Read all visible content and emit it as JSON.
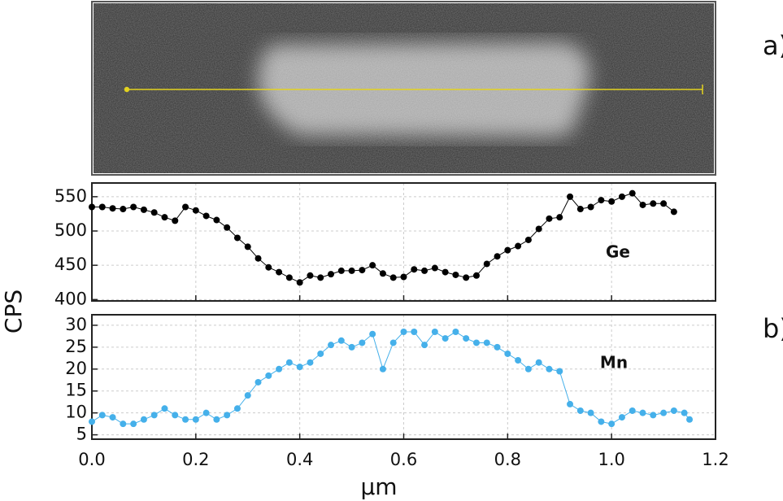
{
  "panels": [
    "a)",
    "b)"
  ],
  "chart_data": [
    {
      "type": "line",
      "ylabel": "CPS",
      "xlim": [
        0,
        1.2
      ],
      "xticks": [
        0,
        0.2,
        0.4,
        0.6,
        0.8,
        1,
        1.2
      ],
      "ylim": [
        398,
        570
      ],
      "yticks": [
        400,
        450,
        500,
        550
      ],
      "grid": true,
      "series": [
        {
          "name": "Ge",
          "color": "#000000",
          "x": [
            0,
            0.02,
            0.04,
            0.06,
            0.08,
            0.1,
            0.12,
            0.14,
            0.16,
            0.18,
            0.2,
            0.22,
            0.24,
            0.26,
            0.28,
            0.3,
            0.32,
            0.34,
            0.36,
            0.38,
            0.4,
            0.42,
            0.44,
            0.46,
            0.48,
            0.5,
            0.52,
            0.54,
            0.56,
            0.58,
            0.6,
            0.62,
            0.64,
            0.66,
            0.68,
            0.7,
            0.72,
            0.74,
            0.76,
            0.78,
            0.8,
            0.82,
            0.84,
            0.86,
            0.88,
            0.9,
            0.92,
            0.94,
            0.96,
            0.98,
            1,
            1.02,
            1.04,
            1.06,
            1.08,
            1.1,
            1.12
          ],
          "values": [
            535,
            535,
            533,
            532,
            535,
            531,
            527,
            520,
            515,
            535,
            530,
            522,
            516,
            505,
            490,
            477,
            460,
            447,
            440,
            432,
            425,
            435,
            432,
            437,
            442,
            442,
            443,
            450,
            438,
            432,
            433,
            444,
            442,
            446,
            440,
            436,
            432,
            435,
            452,
            463,
            472,
            478,
            487,
            503,
            518,
            520,
            550,
            532,
            535,
            545,
            543,
            550,
            555,
            538,
            540,
            540,
            528
          ]
        }
      ]
    },
    {
      "type": "line",
      "xlabel": "µm",
      "xlim": [
        0,
        1.2
      ],
      "xticks": [
        {
          "value": 0,
          "label": "0.0"
        },
        0.2,
        0.4,
        0.6,
        0.8,
        {
          "value": 1,
          "label": "1.0"
        },
        1.2
      ],
      "ylim": [
        4,
        32.4
      ],
      "yticks": [
        5,
        10,
        15,
        20,
        25,
        30
      ],
      "grid": true,
      "series": [
        {
          "name": "Mn",
          "color": "#45b0ea",
          "x": [
            0,
            0.02,
            0.04,
            0.06,
            0.08,
            0.1,
            0.12,
            0.14,
            0.16,
            0.18,
            0.2,
            0.22,
            0.24,
            0.26,
            0.28,
            0.3,
            0.32,
            0.34,
            0.36,
            0.38,
            0.4,
            0.42,
            0.44,
            0.46,
            0.48,
            0.5,
            0.52,
            0.54,
            0.56,
            0.58,
            0.6,
            0.62,
            0.64,
            0.66,
            0.68,
            0.7,
            0.72,
            0.74,
            0.76,
            0.78,
            0.8,
            0.82,
            0.84,
            0.86,
            0.88,
            0.9,
            0.92,
            0.94,
            0.96,
            0.98,
            1,
            1.02,
            1.04,
            1.06,
            1.08,
            1.1,
            1.12,
            1.14,
            1.15
          ],
          "values": [
            8,
            9.5,
            9,
            7.5,
            7.5,
            8.5,
            9.5,
            11,
            9.5,
            8.5,
            8.5,
            10,
            8.5,
            9.5,
            11,
            14,
            17,
            18.5,
            20,
            21.5,
            20.5,
            21.5,
            23.5,
            25.5,
            26.5,
            25,
            26,
            28,
            20,
            26,
            28.5,
            28.5,
            25.5,
            28.5,
            27,
            28.5,
            27,
            26,
            26,
            25,
            23.5,
            22,
            20,
            21.5,
            20,
            19.5,
            12,
            10.5,
            10,
            8,
            7.5,
            9,
            10.5,
            10,
            9.5,
            10,
            10.5,
            10,
            8.5
          ]
        }
      ]
    }
  ]
}
